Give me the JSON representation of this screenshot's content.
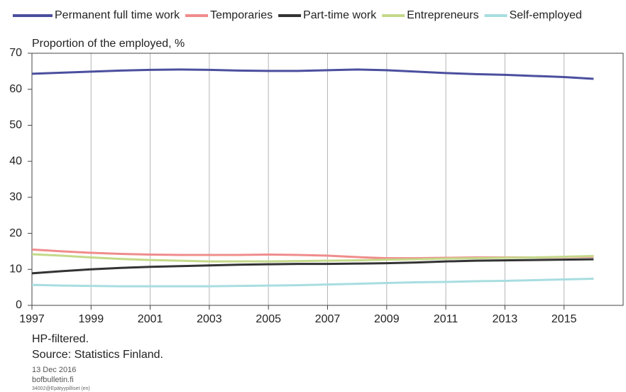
{
  "chart_data": {
    "type": "line",
    "ylabel": "Proportion of the employed, %",
    "x": [
      1997,
      1998,
      1999,
      2000,
      2001,
      2002,
      2003,
      2004,
      2005,
      2006,
      2007,
      2008,
      2009,
      2010,
      2011,
      2012,
      2013,
      2014,
      2015,
      2016
    ],
    "series": [
      {
        "name": "Permanent full time work",
        "color": "#4b4f9e",
        "values": [
          64.3,
          64.6,
          64.9,
          65.2,
          65.4,
          65.5,
          65.4,
          65.2,
          65.1,
          65.1,
          65.3,
          65.5,
          65.3,
          64.9,
          64.5,
          64.2,
          64.0,
          63.7,
          63.4,
          62.9
        ]
      },
      {
        "name": "Temporaries",
        "color": "#f08c8c",
        "values": [
          15.5,
          15.0,
          14.6,
          14.3,
          14.1,
          14.0,
          14.0,
          14.0,
          14.1,
          14.0,
          13.8,
          13.4,
          13.1,
          13.1,
          13.2,
          13.3,
          13.3,
          13.3,
          13.4,
          13.5
        ]
      },
      {
        "name": "Part-time work",
        "color": "#333333",
        "values": [
          8.9,
          9.5,
          10.0,
          10.4,
          10.7,
          10.9,
          11.1,
          11.3,
          11.4,
          11.5,
          11.5,
          11.6,
          11.7,
          11.9,
          12.2,
          12.4,
          12.5,
          12.6,
          12.7,
          12.8
        ]
      },
      {
        "name": "Entrepreneurs",
        "color": "#c4d98a",
        "values": [
          14.2,
          13.8,
          13.3,
          12.9,
          12.6,
          12.4,
          12.2,
          12.2,
          12.2,
          12.3,
          12.4,
          12.5,
          12.7,
          12.8,
          13.0,
          13.1,
          13.2,
          13.3,
          13.5,
          13.7
        ]
      },
      {
        "name": "Self-employed",
        "color": "#a8dde0",
        "values": [
          5.7,
          5.5,
          5.4,
          5.3,
          5.3,
          5.3,
          5.3,
          5.4,
          5.5,
          5.6,
          5.8,
          6.0,
          6.2,
          6.4,
          6.5,
          6.7,
          6.8,
          7.0,
          7.2,
          7.4
        ]
      }
    ],
    "xlim": [
      1997,
      2017
    ],
    "xticks": [
      1997,
      1999,
      2001,
      2003,
      2005,
      2007,
      2009,
      2011,
      2013,
      2015
    ],
    "ylim": [
      0,
      70
    ],
    "yticks": [
      0,
      10,
      20,
      30,
      40,
      50,
      60,
      70
    ],
    "grid": true,
    "legend": "top",
    "notes": [
      "HP-filtered.",
      "Source: Statistics Finland."
    ],
    "date": "13 Dec 2016",
    "site": "bofbulletin.fi",
    "code": "34002@Epätyypilliset (en)"
  }
}
